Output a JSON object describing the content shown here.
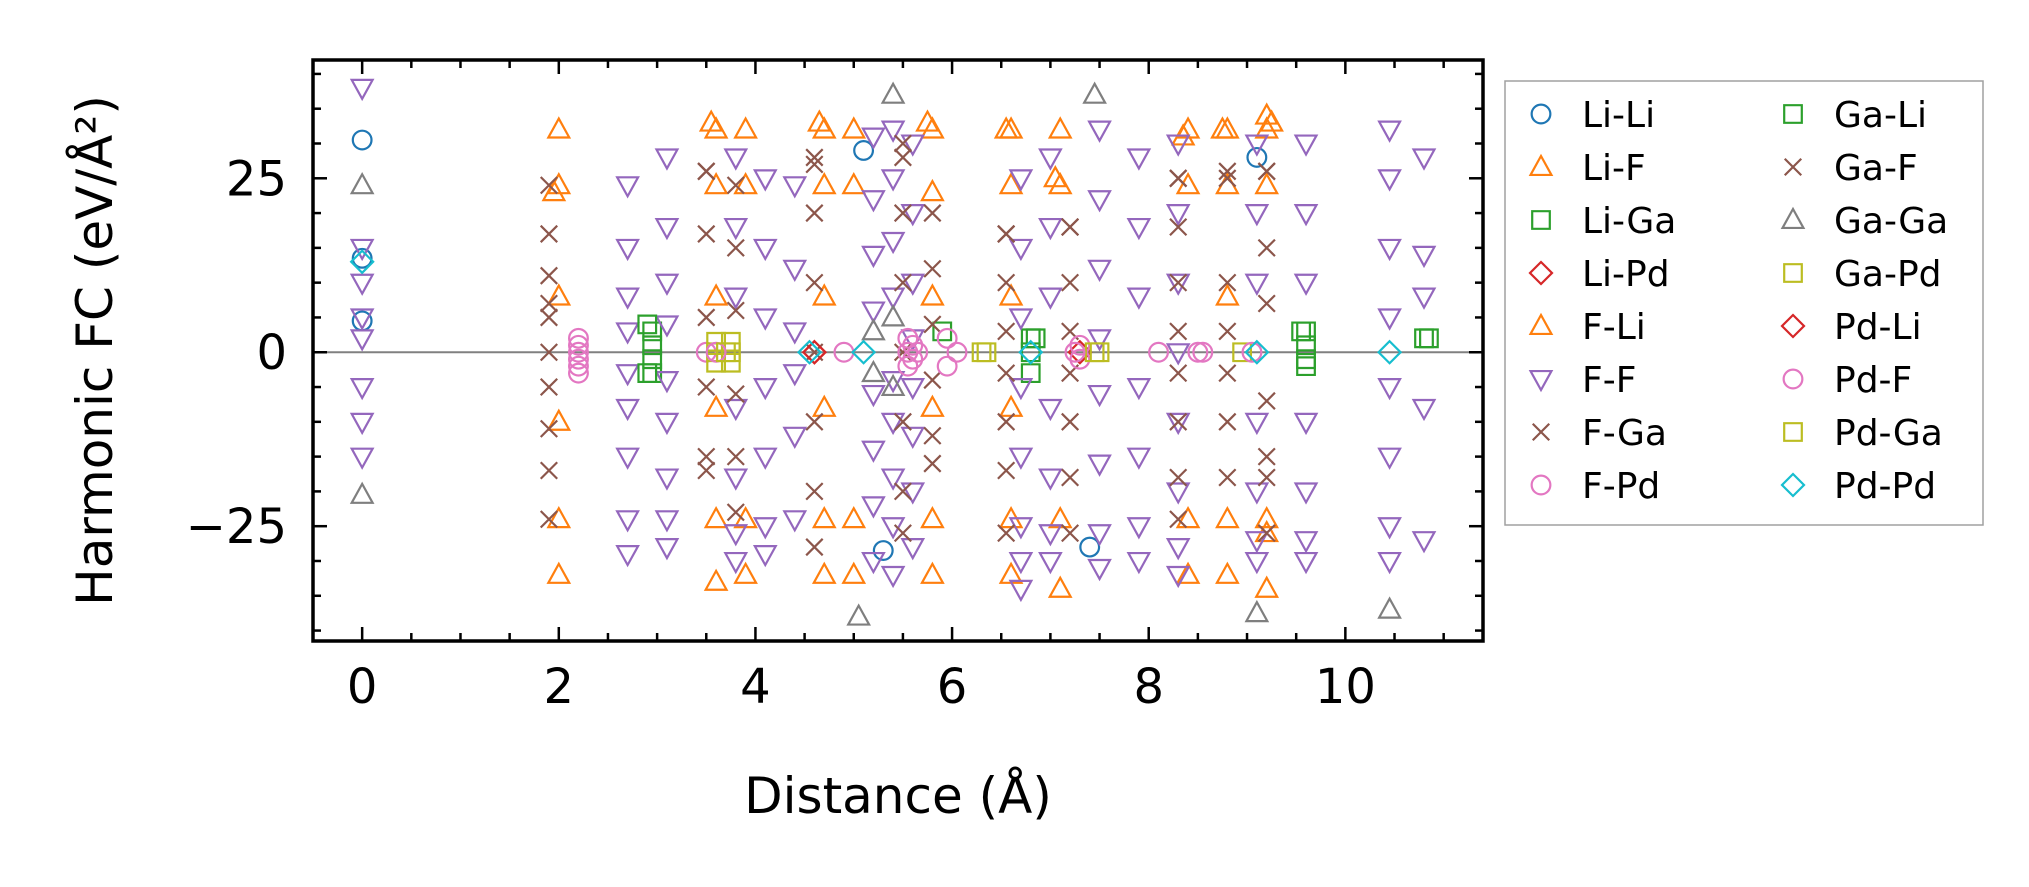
{
  "chart_data": {
    "type": "scatter",
    "title": "",
    "xlabel": "Distance (Å)",
    "ylabel": "Harmonic FC (eV/Å²)",
    "xlim": [
      -0.5,
      11.4
    ],
    "ylim": [
      -41.5,
      42
    ],
    "xticks": [
      0,
      2,
      4,
      6,
      8,
      10
    ],
    "yticks": [
      -25,
      0,
      25
    ],
    "xtick_labels": [
      "0",
      "2",
      "4",
      "6",
      "8",
      "10"
    ],
    "ytick_labels": [
      "−25",
      "0",
      "25"
    ],
    "zero_line": true,
    "grid": false,
    "legend_position": "outside-right",
    "series": [
      {
        "name": "Li-Li",
        "marker": "circle",
        "color": "#1f77b4",
        "x": [
          0,
          0,
          0,
          5.1,
          9.1,
          7.4,
          5.3
        ],
        "y": [
          30.5,
          4.5,
          13.5,
          29,
          28,
          -28,
          -28.5
        ]
      },
      {
        "name": "Li-F",
        "marker": "triangle-up",
        "color": "#ff7f0e",
        "x": [
          2,
          2,
          2,
          2,
          2,
          2,
          3.6,
          3.6,
          3.6,
          3.6,
          3.6,
          3.6,
          3.9,
          3.9,
          3.9,
          3.9,
          4.7,
          4.7,
          4.7,
          4.7,
          4.7,
          4.7,
          5.0,
          5.0,
          5.0,
          5.0,
          5.8,
          5.8,
          5.8,
          5.8,
          5.8,
          5.8,
          6.6,
          6.6,
          6.6,
          6.6,
          6.6,
          6.6,
          7.1,
          7.1,
          7.1,
          7.1,
          8.4,
          8.4,
          8.4,
          8.4,
          8.8,
          8.8,
          8.8,
          8.8,
          8.8,
          9.2,
          9.2,
          9.2,
          9.2,
          9.2,
          9.2
        ],
        "y": [
          32,
          24,
          -10,
          -24,
          -32,
          8,
          32,
          24,
          8,
          -8,
          -24,
          -33,
          32,
          24,
          -24,
          -32,
          32,
          24,
          8,
          -8,
          -24,
          -32,
          32,
          24,
          -24,
          -32,
          32,
          23,
          8,
          -8,
          -24,
          -32,
          32,
          24,
          8,
          -8,
          -24,
          -32,
          32,
          24,
          -24,
          -34,
          32,
          24,
          -24,
          -32,
          32,
          24,
          8,
          -24,
          -32,
          34,
          32,
          24,
          -24,
          -26,
          -34
        ]
      },
      {
        "name": "Li-Ga",
        "marker": "square",
        "color": "#2ca02c",
        "x": [
          2.95,
          2.95,
          2.95,
          2.95,
          6.8,
          6.8,
          6.8,
          9.6,
          9.6,
          9.6,
          9.6,
          10.85,
          5.9
        ],
        "y": [
          3,
          1,
          -1,
          -3,
          2,
          0,
          -3,
          3,
          1,
          -1,
          -2,
          2,
          3
        ]
      },
      {
        "name": "Li-Pd",
        "marker": "diamond",
        "color": "#d62728",
        "x": [
          4.6,
          7.3
        ],
        "y": [
          0,
          0
        ]
      },
      {
        "name": "F-Li",
        "marker": "triangle-up",
        "color": "#ff7f0e",
        "x": [
          1.95,
          3.55,
          4.65,
          5.75,
          6.55,
          7.05,
          8.35,
          8.75,
          9.25
        ],
        "y": [
          23,
          33,
          33,
          33,
          32,
          25,
          31,
          32,
          33
        ]
      },
      {
        "name": "F-F",
        "marker": "triangle-down",
        "color": "#9467bd",
        "x": [
          0,
          0,
          0,
          0,
          0,
          0,
          0,
          0,
          2.7,
          2.7,
          2.7,
          2.7,
          2.7,
          2.7,
          2.7,
          2.7,
          2.7,
          3.1,
          3.1,
          3.1,
          3.1,
          3.1,
          3.1,
          3.1,
          3.1,
          3.1,
          3.8,
          3.8,
          3.8,
          3.8,
          3.8,
          3.8,
          3.8,
          4.1,
          4.1,
          4.1,
          4.1,
          4.1,
          4.1,
          4.1,
          4.4,
          4.4,
          4.4,
          4.4,
          4.4,
          4.4,
          5.2,
          5.2,
          5.2,
          5.2,
          5.2,
          5.2,
          5.2,
          5.2,
          5.4,
          5.4,
          5.4,
          5.4,
          5.4,
          5.4,
          5.4,
          5.4,
          5.4,
          5.6,
          5.6,
          5.6,
          5.6,
          5.6,
          5.6,
          5.6,
          5.6,
          6.7,
          6.7,
          6.7,
          6.7,
          6.7,
          6.7,
          6.7,
          6.7,
          7.0,
          7.0,
          7.0,
          7.0,
          7.0,
          7.0,
          7.0,
          7.5,
          7.5,
          7.5,
          7.5,
          7.5,
          7.5,
          7.5,
          7.5,
          7.9,
          7.9,
          7.9,
          7.9,
          7.9,
          7.9,
          7.9,
          8.3,
          8.3,
          8.3,
          8.3,
          8.3,
          8.3,
          8.3,
          8.3,
          9.1,
          9.1,
          9.1,
          9.1,
          9.1,
          9.1,
          9.1,
          9.6,
          9.6,
          9.6,
          9.6,
          9.6,
          9.6,
          9.6,
          10.45,
          10.45,
          10.45,
          10.45,
          10.45,
          10.45,
          10.45,
          10.45,
          10.8,
          10.8,
          10.8,
          10.8,
          10.8
        ],
        "y": [
          38,
          15,
          10,
          5,
          -5,
          -10,
          -15,
          2,
          24,
          15,
          8,
          3,
          -3,
          -8,
          -15,
          -24,
          -29,
          28,
          18,
          10,
          4,
          -4,
          -10,
          -18,
          -24,
          -28,
          28,
          18,
          8,
          -8,
          -18,
          -26,
          -30,
          25,
          15,
          5,
          -5,
          -15,
          -25,
          -29,
          24,
          12,
          3,
          -3,
          -12,
          -24,
          31,
          22,
          14,
          6,
          -6,
          -14,
          -22,
          -30,
          32,
          25,
          16,
          8,
          -4,
          -10,
          -18,
          -25,
          -32,
          30,
          20,
          10,
          2,
          -5,
          -12,
          -20,
          -28,
          25,
          15,
          5,
          -5,
          -15,
          -25,
          -30,
          -34,
          28,
          18,
          8,
          -8,
          -18,
          -26,
          -30,
          32,
          22,
          12,
          2,
          -6,
          -16,
          -26,
          -31,
          28,
          18,
          8,
          -5,
          -15,
          -25,
          -30,
          30,
          20,
          10,
          0,
          -10,
          -20,
          -28,
          -32,
          30,
          20,
          10,
          -10,
          -20,
          -27,
          -30,
          30,
          20,
          10,
          -10,
          -20,
          -27,
          -30,
          32,
          25,
          15,
          5,
          -5,
          -15,
          -25,
          -30,
          28,
          14,
          8,
          -8,
          -27
        ]
      },
      {
        "name": "F-Ga",
        "marker": "x",
        "color": "#8c564b",
        "x": [
          1.9,
          1.9,
          1.9,
          1.9,
          1.9,
          1.9,
          1.9,
          1.9,
          1.9,
          3.5,
          3.5,
          3.5,
          3.5,
          3.5,
          3.5,
          3.8,
          3.8,
          3.8,
          3.8,
          3.8,
          3.8,
          4.6,
          4.6,
          4.6,
          4.6,
          4.6,
          4.6,
          4.6,
          5.5,
          5.5,
          5.5,
          5.5,
          5.5,
          5.5,
          5.5,
          5.8,
          5.8,
          5.8,
          5.8,
          5.8,
          5.8,
          6.55,
          6.55,
          6.55,
          6.55,
          6.55,
          6.55,
          6.55,
          7.2,
          7.2,
          7.2,
          7.2,
          7.2,
          7.2,
          7.2,
          8.3,
          8.3,
          8.3,
          8.3,
          8.3,
          8.3,
          8.3,
          8.3,
          8.8,
          8.8,
          8.8,
          8.8,
          8.8,
          8.8,
          9.2,
          9.2,
          9.2,
          9.2,
          9.2,
          9.2,
          9.2
        ],
        "y": [
          24,
          17,
          11,
          5,
          0,
          -5,
          -11,
          -17,
          7,
          26,
          17,
          5,
          -5,
          -15,
          -17,
          24,
          15,
          6,
          -6,
          -15,
          -23,
          28,
          20,
          10,
          0,
          -10,
          -20,
          -28,
          30,
          20,
          10,
          0,
          -10,
          -20,
          -26,
          20,
          12,
          4,
          -4,
          -12,
          -16,
          17,
          10,
          3,
          -3,
          -10,
          -17,
          -26,
          18,
          10,
          3,
          -3,
          -10,
          -18,
          -26,
          25,
          18,
          10,
          3,
          -3,
          -10,
          -18,
          -24,
          25,
          10,
          3,
          -3,
          -10,
          -18,
          26,
          15,
          7,
          -7,
          -15,
          -18,
          -26
        ]
      },
      {
        "name": "F-Pd",
        "marker": "circle",
        "color": "#e377c2",
        "x": [
          2.2,
          2.2,
          2.2,
          2.2,
          2.2,
          2.2,
          3.5,
          5.55,
          5.55,
          5.55,
          5.6,
          5.6,
          5.95,
          5.95,
          7.3,
          7.3,
          8.1,
          8.55
        ],
        "y": [
          2,
          1,
          0,
          -1,
          -2,
          -3,
          0,
          2,
          0,
          -2,
          1,
          -1,
          2,
          -2,
          1,
          -1,
          0,
          0
        ]
      },
      {
        "name": "Ga-Li",
        "marker": "square",
        "color": "#2ca02c",
        "x": [
          2.9,
          2.9,
          6.85,
          9.55,
          10.8
        ],
        "y": [
          4,
          -3,
          2,
          3,
          2
        ]
      },
      {
        "name": "Ga-F",
        "marker": "x",
        "color": "#8c564b",
        "x": [
          1.9,
          3.5,
          4.6,
          5.5,
          6.55,
          7.2,
          8.3,
          8.8,
          9.2
        ],
        "y": [
          -24,
          26,
          27,
          28,
          17,
          18,
          25,
          26,
          26
        ]
      },
      {
        "name": "Ga-Ga",
        "marker": "triangle-up",
        "color": "#7f7f7f",
        "x": [
          0,
          0,
          5.05,
          5.4,
          7.45,
          9.1,
          10.45,
          5.4,
          5.4,
          5.2,
          5.2
        ],
        "y": [
          24,
          -20.5,
          -38,
          37,
          37,
          -37.5,
          -37,
          5,
          -5,
          3,
          -3
        ]
      },
      {
        "name": "Ga-Pd",
        "marker": "square",
        "color": "#bcbd22",
        "x": [
          3.6,
          3.6,
          3.6,
          3.75,
          3.75,
          3.75,
          6.3,
          7.45,
          8.95
        ],
        "y": [
          1.5,
          0,
          -1.5,
          1.5,
          0,
          -1.5,
          0,
          0,
          0
        ]
      },
      {
        "name": "Pd-Li",
        "marker": "diamond",
        "color": "#d62728",
        "x": [
          4.6
        ],
        "y": [
          0
        ]
      },
      {
        "name": "Pd-F",
        "marker": "circle",
        "color": "#e377c2",
        "x": [
          3.6,
          4.9,
          5.65,
          6.05,
          7.25,
          8.5,
          9.05
        ],
        "y": [
          0,
          0,
          0,
          0,
          0,
          0,
          0
        ]
      },
      {
        "name": "Pd-Ga",
        "marker": "square",
        "color": "#bcbd22",
        "x": [
          3.7,
          6.35,
          7.5
        ],
        "y": [
          0,
          0,
          0
        ]
      },
      {
        "name": "Pd-Pd",
        "marker": "diamond",
        "color": "#17becf",
        "x": [
          0,
          4.55,
          5.1,
          6.8,
          9.1,
          10.45
        ],
        "y": [
          13,
          0,
          0,
          0,
          0,
          0
        ]
      }
    ]
  }
}
